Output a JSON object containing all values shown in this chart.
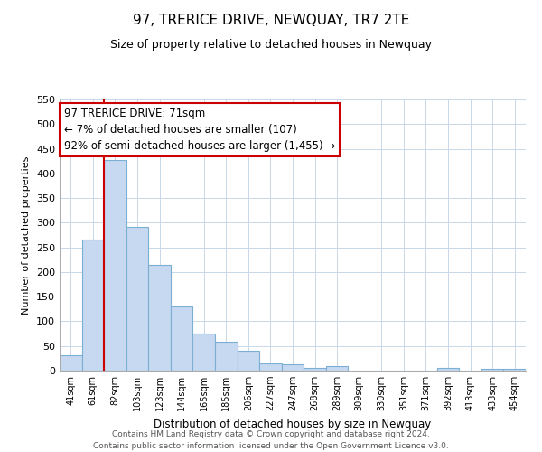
{
  "title": "97, TRERICE DRIVE, NEWQUAY, TR7 2TE",
  "subtitle": "Size of property relative to detached houses in Newquay",
  "xlabel": "Distribution of detached houses by size in Newquay",
  "ylabel": "Number of detached properties",
  "bar_labels": [
    "41sqm",
    "61sqm",
    "82sqm",
    "103sqm",
    "123sqm",
    "144sqm",
    "165sqm",
    "185sqm",
    "206sqm",
    "227sqm",
    "247sqm",
    "268sqm",
    "289sqm",
    "309sqm",
    "330sqm",
    "351sqm",
    "371sqm",
    "392sqm",
    "413sqm",
    "433sqm",
    "454sqm"
  ],
  "bar_values": [
    32,
    265,
    428,
    292,
    215,
    130,
    76,
    59,
    40,
    15,
    13,
    6,
    9,
    0,
    0,
    0,
    0,
    5,
    0,
    3,
    4
  ],
  "bar_color": "#c6d9f0",
  "bar_edge_color": "#7bafd4",
  "vline_x": 1.5,
  "vline_color": "#cc0000",
  "ylim": [
    0,
    550
  ],
  "yticks": [
    0,
    50,
    100,
    150,
    200,
    250,
    300,
    350,
    400,
    450,
    500,
    550
  ],
  "annotation_title": "97 TRERICE DRIVE: 71sqm",
  "annotation_line1": "← 7% of detached houses are smaller (107)",
  "annotation_line2": "92% of semi-detached houses are larger (1,455) →",
  "annotation_box_color": "#ffffff",
  "annotation_box_edge": "#cc0000",
  "footer_line1": "Contains HM Land Registry data © Crown copyright and database right 2024.",
  "footer_line2": "Contains public sector information licensed under the Open Government Licence v3.0.",
  "background_color": "#ffffff",
  "grid_color": "#c8d8e8"
}
